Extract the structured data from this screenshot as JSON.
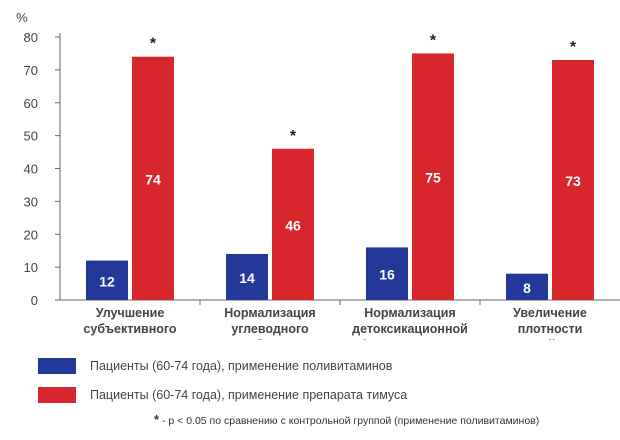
{
  "chart_data": {
    "type": "bar",
    "ylabel": "%",
    "ylim": [
      0,
      80
    ],
    "yticks": [
      0,
      10,
      20,
      30,
      40,
      50,
      60,
      70,
      80
    ],
    "categories": [
      [
        "Улучшение",
        "субъективного",
        "состояния"
      ],
      [
        "Нормализация",
        "углеводного",
        "обмена"
      ],
      [
        "Нормализация",
        "детоксикационной",
        "функции печени"
      ],
      [
        "Увеличение",
        "плотности",
        "костной ткани"
      ]
    ],
    "series": [
      {
        "name": "Пациенты (60-74 года), применение поливитаминов",
        "color": "#23399a",
        "values": [
          12,
          14,
          16,
          8
        ]
      },
      {
        "name": "Пациенты (60-74 года), применение препарата тимуса",
        "color": "#d7262c",
        "values": [
          74,
          46,
          75,
          73
        ]
      }
    ],
    "significance": [
      "*",
      "*",
      "*",
      "*"
    ],
    "grid": false
  },
  "footnote": {
    "marker": "*",
    "text": " - p < 0.05 по сравнению с контрольной группой (применение поливитаминов)"
  }
}
